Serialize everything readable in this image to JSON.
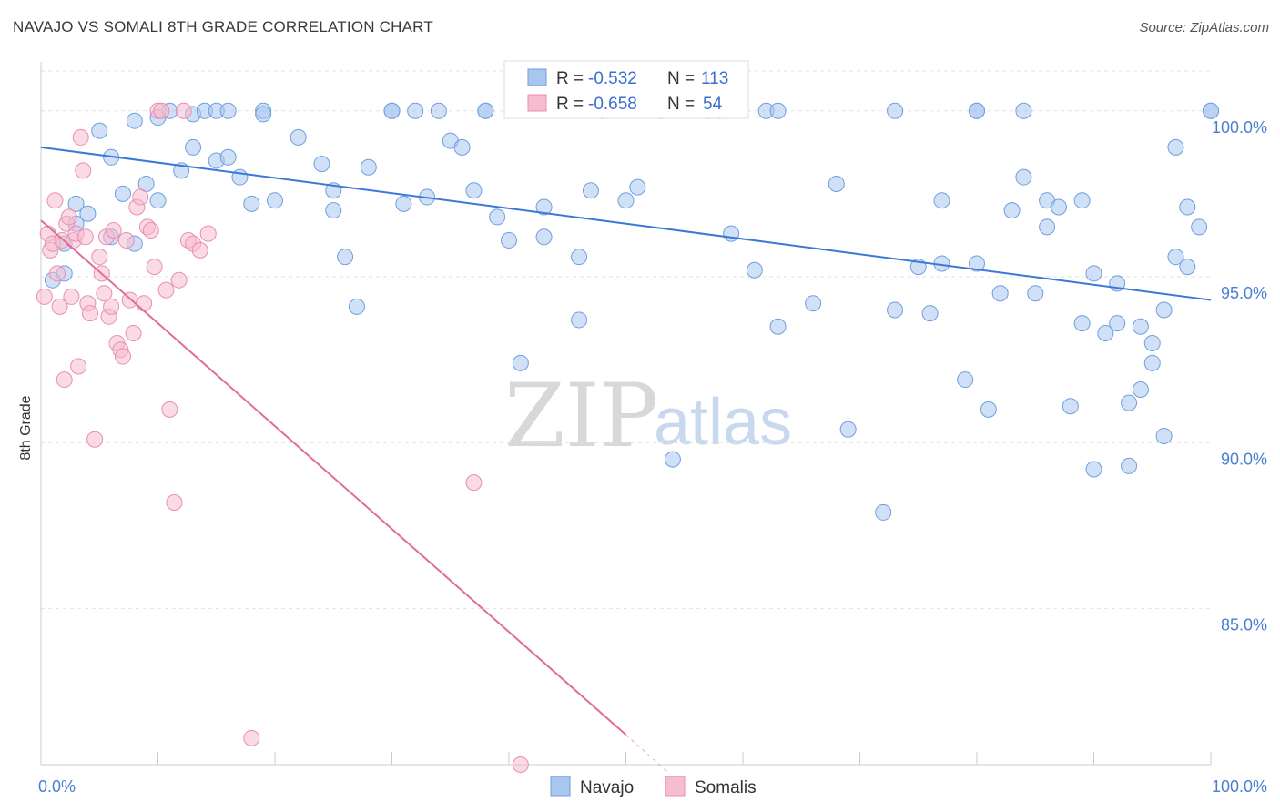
{
  "header": {
    "title": "NAVAJO VS SOMALI 8TH GRADE CORRELATION CHART",
    "source": "Source: ZipAtlas.com"
  },
  "watermark": {
    "zip": "ZIP",
    "atlas": "atlas"
  },
  "stats": {
    "navajo": {
      "r_label": "R =",
      "r_value": "-0.532",
      "n_label": "N =",
      "n_value": "113"
    },
    "somalis": {
      "r_label": "R =",
      "r_value": "-0.658",
      "n_label": "N =",
      "n_value": "54"
    }
  },
  "legend": {
    "navajo": "Navajo",
    "somalis": "Somalis"
  },
  "colors": {
    "navajo_fill": "#a9c6ee",
    "navajo_stroke": "#6f9fde",
    "navajo_line": "#3b78d8",
    "somalis_fill": "#f6bcd0",
    "somalis_stroke": "#e98fae",
    "somalis_line": "#e06c97"
  },
  "chart_data": {
    "type": "scatter",
    "title": "NAVAJO VS SOMALI 8TH GRADE CORRELATION CHART",
    "xlabel": "",
    "ylabel": "8th Grade",
    "xlim": [
      0,
      100
    ],
    "ylim": [
      80.3,
      101.2
    ],
    "x_tick_labels": [
      "0.0%",
      "100.0%"
    ],
    "y_ticks": [
      85,
      90,
      95,
      100
    ],
    "y_tick_labels": [
      "85.0%",
      "90.0%",
      "95.0%",
      "100.0%"
    ],
    "grid": true,
    "legend_position": "bottom-center",
    "series": [
      {
        "name": "Navajo",
        "x": [
          1,
          2,
          2,
          3,
          3,
          4,
          5,
          6,
          6,
          7,
          8,
          8,
          9,
          10,
          10,
          11,
          12,
          13,
          13,
          14,
          15,
          15,
          16,
          16,
          17,
          18,
          19,
          19,
          20,
          22,
          24,
          25,
          25,
          26,
          27,
          28,
          30,
          31,
          32,
          33,
          34,
          35,
          36,
          37,
          38,
          38,
          39,
          41,
          43,
          43,
          46,
          46,
          48,
          50,
          51,
          53,
          54,
          57,
          58,
          59,
          61,
          62,
          63,
          63,
          66,
          68,
          69,
          72,
          73,
          73,
          75,
          76,
          77,
          77,
          79,
          80,
          80,
          81,
          82,
          83,
          84,
          85,
          86,
          86,
          87,
          88,
          89,
          89,
          90,
          90,
          91,
          92,
          92,
          93,
          93,
          94,
          94,
          95,
          95,
          96,
          96,
          97,
          97,
          98,
          98,
          99,
          100,
          101,
          80,
          84,
          40,
          47,
          30
        ],
        "y": [
          94.9,
          96.0,
          95.1,
          96.6,
          97.2,
          96.9,
          99.4,
          96.2,
          98.6,
          97.5,
          96.0,
          99.7,
          97.8,
          97.3,
          99.8,
          100.0,
          98.2,
          98.9,
          99.9,
          100.0,
          98.5,
          100.0,
          98.6,
          100.0,
          98.0,
          97.2,
          100.0,
          99.9,
          97.3,
          99.2,
          98.4,
          97.0,
          97.6,
          95.6,
          94.1,
          98.3,
          100.0,
          97.2,
          100.0,
          97.4,
          100.0,
          99.1,
          98.9,
          97.6,
          100.0,
          100.0,
          96.8,
          92.4,
          97.1,
          96.2,
          95.6,
          93.7,
          100.0,
          97.3,
          97.7,
          100.0,
          89.5,
          100.0,
          100.0,
          96.3,
          95.2,
          100.0,
          100.0,
          93.5,
          94.2,
          97.8,
          90.4,
          87.9,
          100.0,
          94.0,
          95.3,
          93.9,
          95.4,
          97.3,
          91.9,
          95.4,
          100.0,
          91.0,
          94.5,
          97.0,
          98.0,
          94.5,
          96.5,
          97.3,
          97.1,
          91.1,
          97.3,
          93.6,
          95.1,
          89.2,
          93.3,
          94.8,
          93.6,
          91.2,
          89.3,
          91.6,
          93.5,
          93.0,
          92.4,
          90.2,
          94.0,
          98.9,
          95.6,
          97.1,
          95.3,
          96.5,
          100.0,
          100.0,
          100.0,
          100.0,
          96.1,
          97.6,
          100.0
        ]
      },
      {
        "name": "Somalis",
        "x": [
          0.3,
          0.6,
          0.8,
          1.0,
          1.2,
          1.4,
          1.6,
          1.8,
          2.0,
          2.2,
          2.4,
          2.6,
          2.8,
          3.0,
          3.2,
          3.4,
          3.6,
          3.8,
          4.0,
          4.2,
          4.6,
          5.0,
          5.2,
          5.4,
          5.6,
          5.8,
          6.0,
          6.2,
          6.5,
          6.8,
          7.0,
          7.3,
          7.6,
          7.9,
          8.2,
          8.5,
          8.8,
          9.1,
          9.4,
          9.7,
          10.0,
          10.3,
          10.7,
          11.0,
          11.4,
          11.8,
          12.2,
          12.6,
          13.0,
          13.6,
          14.3,
          18.0,
          37.0,
          41.0
        ],
        "y": [
          94.4,
          96.3,
          95.8,
          96.0,
          97.3,
          95.1,
          94.1,
          96.1,
          91.9,
          96.6,
          96.8,
          94.4,
          96.1,
          96.3,
          92.3,
          99.2,
          98.2,
          96.2,
          94.2,
          93.9,
          90.1,
          95.6,
          95.1,
          94.5,
          96.2,
          93.8,
          94.1,
          96.4,
          93.0,
          92.8,
          92.6,
          96.1,
          94.3,
          93.3,
          97.1,
          97.4,
          94.2,
          96.5,
          96.4,
          95.3,
          100.0,
          100.0,
          94.6,
          91.0,
          88.2,
          94.9,
          100.0,
          96.1,
          96.0,
          95.8,
          96.3,
          81.1,
          88.8,
          80.3
        ]
      }
    ],
    "trend_lines": [
      {
        "name": "Navajo",
        "x": [
          0,
          100
        ],
        "y": [
          98.9,
          94.3
        ]
      },
      {
        "name": "Somalis",
        "x": [
          0,
          50,
          53.5
        ],
        "y": [
          96.7,
          81.2,
          80.1
        ]
      }
    ]
  }
}
